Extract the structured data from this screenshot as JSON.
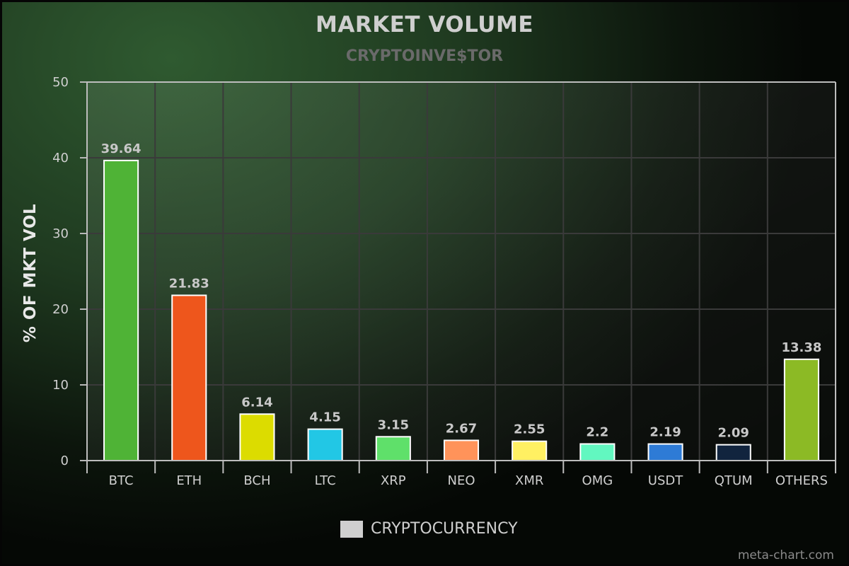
{
  "chart_data": {
    "type": "bar",
    "title": "MARKET VOLUME",
    "subtitle": "CRYPTOINVE$TOR",
    "ylabel": "% OF MKT VOL",
    "xlabel": "",
    "ylim": [
      0,
      50
    ],
    "yticks": [
      0,
      10,
      20,
      30,
      40,
      50
    ],
    "grid": true,
    "legend": {
      "position": "bottom-center",
      "label": "CRYPTOCURRENCY",
      "color": "#cfcfcf"
    },
    "categories": [
      "BTC",
      "ETH",
      "BCH",
      "LTC",
      "XRP",
      "NEO",
      "XMR",
      "OMG",
      "USDT",
      "QTUM",
      "OTHERS"
    ],
    "values": [
      39.64,
      21.83,
      6.14,
      4.15,
      3.15,
      2.67,
      2.55,
      2.2,
      2.19,
      2.09,
      13.38
    ],
    "colors": [
      "#4fb336",
      "#ee561c",
      "#dcdc00",
      "#22c7e5",
      "#5fe06a",
      "#ff935a",
      "#fff062",
      "#62f7c0",
      "#2e7bd6",
      "#11243e",
      "#8cba25"
    ]
  },
  "credit": "meta-chart.com"
}
